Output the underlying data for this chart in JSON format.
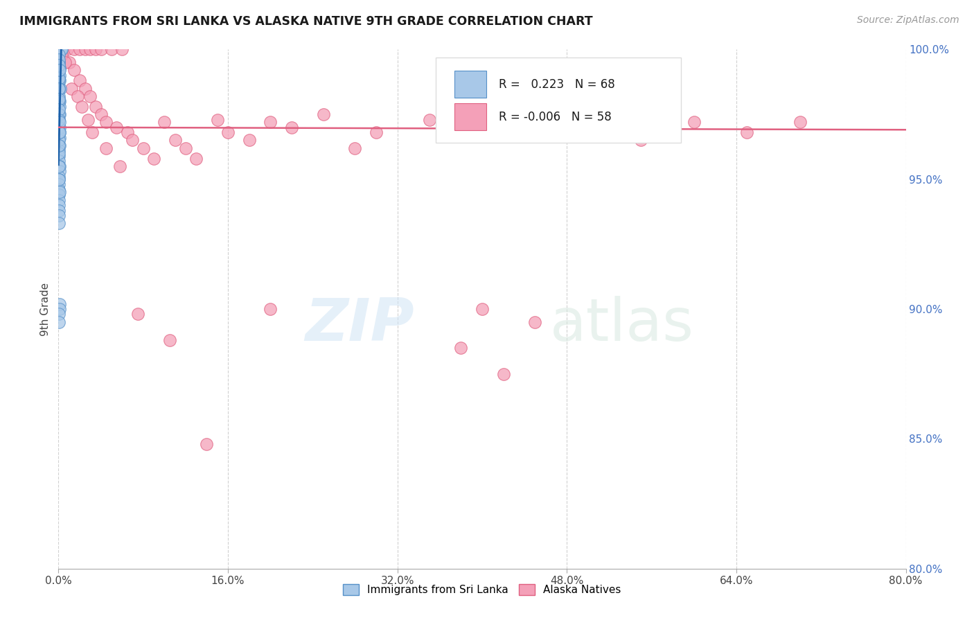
{
  "title": "IMMIGRANTS FROM SRI LANKA VS ALASKA NATIVE 9TH GRADE CORRELATION CHART",
  "source": "Source: ZipAtlas.com",
  "ylabel": "9th Grade",
  "xlim": [
    0.0,
    80.0
  ],
  "ylim": [
    80.0,
    100.0
  ],
  "xticks": [
    0.0,
    16.0,
    32.0,
    48.0,
    64.0,
    80.0
  ],
  "yticks": [
    80.0,
    85.0,
    90.0,
    95.0,
    100.0
  ],
  "blue_R": 0.223,
  "blue_N": 68,
  "pink_R": -0.006,
  "pink_N": 58,
  "blue_color": "#a8c8e8",
  "pink_color": "#f4a0b8",
  "blue_edge_color": "#5590c8",
  "pink_edge_color": "#e06080",
  "blue_line_color": "#1a5fa8",
  "pink_line_color": "#e06080",
  "watermark_zip": "ZIP",
  "watermark_atlas": "atlas",
  "legend_label_blue": "Immigrants from Sri Lanka",
  "legend_label_pink": "Alaska Natives",
  "blue_dots_x": [
    0.05,
    0.08,
    0.1,
    0.12,
    0.15,
    0.18,
    0.2,
    0.22,
    0.25,
    0.3,
    0.05,
    0.07,
    0.09,
    0.1,
    0.12,
    0.15,
    0.05,
    0.08,
    0.1,
    0.12,
    0.05,
    0.07,
    0.08,
    0.1,
    0.12,
    0.03,
    0.05,
    0.07,
    0.08,
    0.1,
    0.03,
    0.04,
    0.05,
    0.06,
    0.07,
    0.03,
    0.04,
    0.05,
    0.06,
    0.07,
    0.03,
    0.04,
    0.05,
    0.06,
    0.08,
    0.03,
    0.04,
    0.05,
    0.07,
    0.08,
    0.03,
    0.04,
    0.05,
    0.06,
    0.07,
    0.03,
    0.04,
    0.05,
    0.1,
    0.12,
    0.03,
    0.04,
    0.05,
    0.06,
    0.07,
    0.08,
    0.1,
    0.12
  ],
  "blue_dots_y": [
    100.0,
    100.0,
    100.0,
    100.0,
    100.0,
    100.0,
    100.0,
    100.0,
    100.0,
    100.0,
    99.5,
    99.5,
    99.3,
    99.0,
    98.8,
    98.5,
    98.2,
    98.0,
    97.8,
    97.5,
    97.3,
    97.0,
    96.8,
    96.6,
    96.3,
    96.1,
    95.9,
    95.7,
    95.5,
    95.3,
    95.1,
    95.0,
    94.8,
    94.6,
    94.4,
    94.2,
    94.0,
    93.8,
    93.6,
    93.3,
    98.8,
    98.5,
    98.0,
    97.5,
    97.0,
    96.5,
    96.0,
    95.5,
    95.0,
    94.5,
    99.2,
    98.9,
    98.5,
    98.1,
    97.7,
    97.3,
    96.8,
    96.3,
    90.2,
    90.0,
    89.8,
    89.5,
    99.8,
    99.6,
    99.4,
    99.2,
    97.2,
    96.8
  ],
  "pink_dots_x": [
    0.5,
    0.8,
    1.5,
    2.0,
    2.5,
    3.0,
    3.5,
    4.0,
    5.0,
    6.0,
    1.0,
    1.5,
    2.0,
    2.5,
    3.0,
    3.5,
    4.0,
    4.5,
    5.5,
    6.5,
    7.0,
    8.0,
    9.0,
    10.0,
    11.0,
    12.0,
    13.0,
    15.0,
    16.0,
    18.0,
    20.0,
    22.0,
    25.0,
    28.0,
    30.0,
    35.0,
    40.0,
    45.0,
    50.0,
    55.0,
    60.0,
    65.0,
    70.0,
    38.0,
    42.0,
    0.3,
    0.6,
    1.2,
    1.8,
    2.2,
    2.8,
    3.2,
    4.5,
    5.8,
    7.5,
    10.5,
    14.0,
    20.0
  ],
  "pink_dots_y": [
    100.0,
    100.0,
    100.0,
    100.0,
    100.0,
    100.0,
    100.0,
    100.0,
    100.0,
    100.0,
    99.5,
    99.2,
    98.8,
    98.5,
    98.2,
    97.8,
    97.5,
    97.2,
    97.0,
    96.8,
    96.5,
    96.2,
    95.8,
    97.2,
    96.5,
    96.2,
    95.8,
    97.3,
    96.8,
    96.5,
    97.2,
    97.0,
    97.5,
    96.2,
    96.8,
    97.3,
    90.0,
    89.5,
    97.2,
    96.5,
    97.2,
    96.8,
    97.2,
    88.5,
    87.5,
    99.8,
    99.5,
    98.5,
    98.2,
    97.8,
    97.3,
    96.8,
    96.2,
    95.5,
    89.8,
    88.8,
    84.8,
    90.0
  ]
}
